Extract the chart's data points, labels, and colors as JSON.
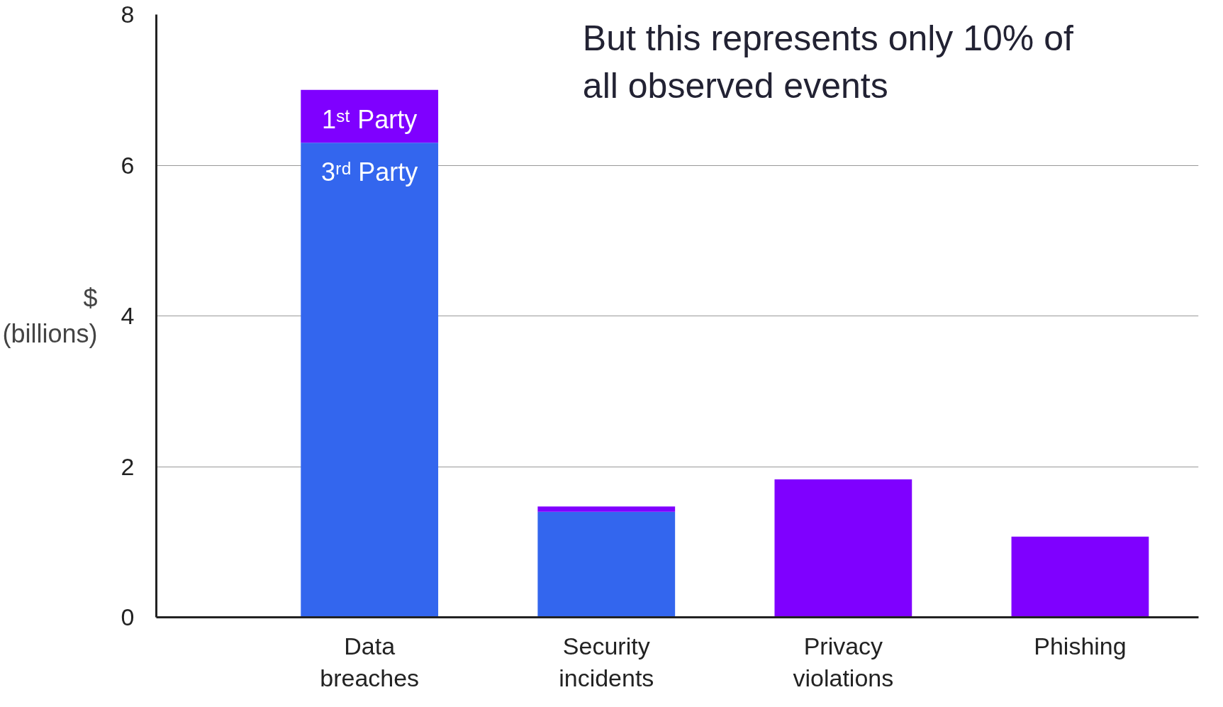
{
  "chart_data": {
    "type": "bar",
    "stacked": true,
    "categories": [
      "Data\nbreaches",
      "Security\nincidents",
      "Privacy\nviolations",
      "Phishing"
    ],
    "series": [
      {
        "name": "3ʳᵈ Party",
        "color": "#3366ee",
        "values": [
          6.3,
          1.4,
          null,
          null
        ]
      },
      {
        "name": "1ˢᵗ Party",
        "color": "#7f00ff",
        "values": [
          0.7,
          0.07,
          1.83,
          1.07
        ]
      }
    ],
    "ylabel": "$ (billions)",
    "ylim": [
      0,
      8
    ],
    "yticks": [
      0,
      2,
      4,
      6,
      8
    ],
    "grid": "y",
    "annotations": [
      "But this represents only 10% of all observed events"
    ]
  }
}
